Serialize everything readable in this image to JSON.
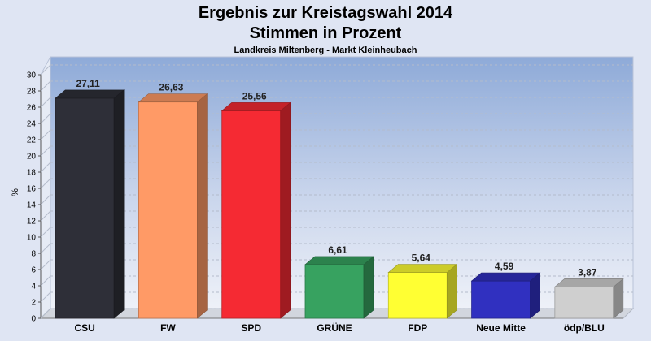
{
  "chart_data": {
    "type": "bar",
    "title": "Ergebnis zur Kreistagswahl 2014",
    "title_line2": "Stimmen in Prozent",
    "subtitle": "Landkreis Miltenberg - Markt Kleinheubach",
    "xlabel": "",
    "ylabel": "%",
    "ylim": [
      0,
      30
    ],
    "ytick_step": 2,
    "grid": true,
    "categories": [
      "CSU",
      "FW",
      "SPD",
      "GRÜNE",
      "FDP",
      "Neue Mitte",
      "ödp/BLU"
    ],
    "values": [
      27.11,
      26.63,
      25.56,
      6.61,
      5.64,
      4.59,
      3.87
    ],
    "value_labels": [
      "27,11",
      "26,63",
      "25,56",
      "6,61",
      "5,64",
      "4,59",
      "3,87"
    ],
    "colors": [
      "#2e2f38",
      "#ff9a66",
      "#f52a33",
      "#37a260",
      "#ffff33",
      "#3030c0",
      "#cfcfcf"
    ]
  }
}
